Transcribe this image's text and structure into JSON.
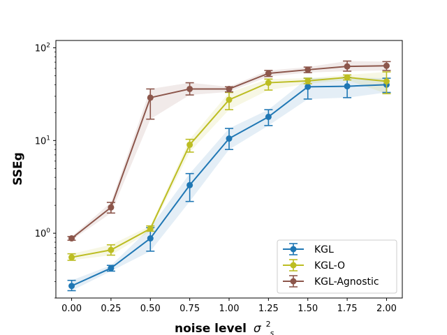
{
  "chart_data": {
    "type": "line",
    "title": "",
    "xlabel": "noise level",
    "xlabel_symbol": "σ",
    "xlabel_superscript": "2",
    "xlabel_subscript": "s",
    "ylabel": "SSEg",
    "yscale": "log",
    "xlim": [
      -0.1,
      2.1
    ],
    "ylim": [
      0.2,
      120
    ],
    "xticks": [
      0,
      0.25,
      0.5,
      0.75,
      1.0,
      1.25,
      1.5,
      1.75,
      2.0
    ],
    "xtick_labels": [
      "0.00",
      "0.25",
      "0.50",
      "0.75",
      "1.00",
      "1.25",
      "1.50",
      "1.75",
      "2.00"
    ],
    "yticks": [
      {
        "value": 1,
        "base": "10",
        "exp": "0"
      },
      {
        "value": 10,
        "base": "10",
        "exp": "1"
      },
      {
        "value": 100,
        "base": "10",
        "exp": "2"
      }
    ],
    "legend_position": "lower-right",
    "x": [
      0,
      0.25,
      0.5,
      0.75,
      1.0,
      1.25,
      1.5,
      1.75,
      2.0
    ],
    "series": [
      {
        "name": "KGL",
        "color": "#1f77b4",
        "values": [
          0.27,
          0.42,
          0.88,
          3.3,
          10.5,
          18.0,
          38.0,
          38.5,
          40.0
        ],
        "err_low": [
          0.24,
          0.39,
          0.64,
          2.2,
          8.0,
          14.5,
          28.0,
          29.0,
          33.0
        ],
        "err_high": [
          0.31,
          0.45,
          1.15,
          4.4,
          13.5,
          21.5,
          47.0,
          48.0,
          47.0
        ]
      },
      {
        "name": "KGL-O",
        "color": "#bcbd22",
        "values": [
          0.55,
          0.66,
          1.12,
          9.0,
          27.5,
          42.0,
          44.0,
          48.0,
          43.5
        ],
        "err_low": [
          0.51,
          0.58,
          1.05,
          7.5,
          21.5,
          35.0,
          41.0,
          45.0,
          32.0
        ],
        "err_high": [
          0.6,
          0.75,
          1.2,
          10.3,
          33.0,
          46.0,
          47.0,
          51.0,
          55.0
        ]
      },
      {
        "name": "KGL-Agnostic",
        "color": "#8c564b",
        "values": [
          0.88,
          1.9,
          29.0,
          36.0,
          36.0,
          53.0,
          58.0,
          63.0,
          64.0
        ],
        "err_low": [
          0.84,
          1.65,
          17.0,
          31.0,
          33.5,
          49.0,
          54.0,
          56.0,
          57.0
        ],
        "err_high": [
          0.92,
          2.15,
          36.0,
          42.0,
          38.0,
          57.0,
          62.0,
          72.0,
          71.0
        ]
      }
    ]
  }
}
